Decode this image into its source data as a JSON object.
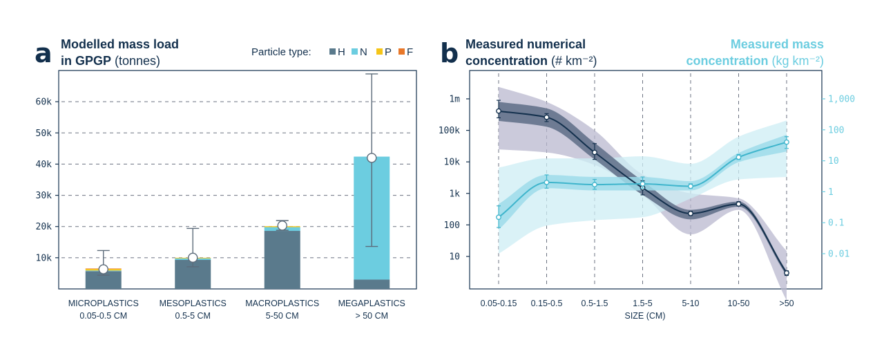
{
  "colors": {
    "H": "#5a7a8c",
    "N": "#6ccde0",
    "P": "#f5c518",
    "F": "#e8782a",
    "navy": "#13304d",
    "cyan": "#6ccde0"
  },
  "chart_data": [
    {
      "panel": "a",
      "type": "bar",
      "title": "Modelled mass load",
      "title_line2_bold": "in GPGP",
      "title_line2_unit": "(tonnes)",
      "legend_title": "Particle type:",
      "legend": [
        {
          "key": "H",
          "label": "H",
          "color": "#5a7a8c"
        },
        {
          "key": "N",
          "label": "N",
          "color": "#6ccde0"
        },
        {
          "key": "P",
          "label": "P",
          "color": "#f5c518"
        },
        {
          "key": "F",
          "label": "F",
          "color": "#e8782a"
        }
      ],
      "ylim": [
        0,
        70000
      ],
      "yticks": [
        10000,
        20000,
        30000,
        40000,
        50000,
        60000
      ],
      "ytick_labels": [
        "10k",
        "20k",
        "30k",
        "40k",
        "50k",
        "60k"
      ],
      "categories": [
        {
          "line1": "MICROPLASTICS",
          "line2": "0.05-0.5 CM"
        },
        {
          "line1": "MESOPLASTICS",
          "line2": "0.5-5 CM"
        },
        {
          "line1": "MACROPLASTICS",
          "line2": "5-50 CM"
        },
        {
          "line1": "MEGAPLASTICS",
          "line2": "> 50 CM"
        }
      ],
      "stacks": [
        {
          "H": 5700,
          "N": 200,
          "P": 500,
          "F": 150
        },
        {
          "H": 9300,
          "N": 500,
          "P": 200,
          "F": 0
        },
        {
          "H": 18600,
          "N": 1200,
          "P": 300,
          "F": 0
        },
        {
          "H": 3000,
          "N": 39400,
          "P": 0,
          "F": 0
        }
      ],
      "points": [
        6300,
        10000,
        20300,
        42000
      ],
      "errors": [
        [
          4400,
          12300
        ],
        [
          7100,
          19400
        ],
        [
          18800,
          21900
        ],
        [
          13600,
          68900
        ]
      ]
    },
    {
      "panel": "b",
      "type": "line",
      "title_left_line1": "Measured numerical",
      "title_left_line2": "concentration",
      "title_left_unit": "(# km⁻²)",
      "title_right_line1": "Measured mass",
      "title_right_line2": "concentration",
      "title_right_unit": "(kg km⁻²)",
      "xlabel": "SIZE (CM)",
      "categories": [
        "0.05-0.15",
        "0.15-0.5",
        "0.5-1.5",
        "1.5-5",
        "5-10",
        "10-50",
        ">50"
      ],
      "yleft_ticks": [
        10,
        100,
        1000,
        10000,
        100000,
        1000000
      ],
      "yleft_tick_labels": [
        "10",
        "100",
        "1k",
        "10k",
        "100k",
        "1m"
      ],
      "yright_ticks": [
        0.01,
        0.1,
        1,
        10,
        100,
        1000
      ],
      "yright_tick_labels": [
        "0.01",
        "0.1",
        "1",
        "10",
        "100",
        "1,000"
      ],
      "series": [
        {
          "axis": "left",
          "color": "#13304d",
          "values": [
            410000,
            260000,
            20000,
            1500,
            230,
            460,
            3
          ],
          "err": [
            [
              250000,
              900000
            ],
            [
              190000,
              340000
            ],
            [
              12000,
              38000
            ],
            [
              900,
              2500
            ],
            [
              200,
              270
            ],
            [
              400,
              550
            ],
            [
              2.5,
              3.5
            ]
          ],
          "band_outer": [
            [
              25000,
              2400000
            ],
            [
              20000,
              800000
            ],
            [
              8000,
              100000
            ],
            [
              900,
              4000
            ],
            [
              50,
              1000
            ],
            [
              300,
              700
            ],
            [
              0.4,
              15
            ]
          ],
          "band_inner": [
            [
              200000,
              800000
            ],
            [
              130000,
              500000
            ],
            [
              12000,
              40000
            ],
            [
              900,
              2500
            ],
            [
              150,
              300
            ],
            [
              380,
              550
            ],
            [
              2.5,
              3.5
            ]
          ]
        },
        {
          "axis": "right",
          "color": "#3fb5cc",
          "values": [
            0.15,
            2,
            1.7,
            1.8,
            1.5,
            13,
            40
          ],
          "err": [
            [
              0.07,
              0.35
            ],
            [
              1.3,
              3.5
            ],
            [
              1.2,
              2.5
            ],
            [
              1.3,
              3
            ],
            [
              1.3,
              1.8
            ],
            [
              11,
              16
            ],
            [
              25,
              60
            ]
          ],
          "band_outer": [
            [
              0.01,
              6
            ],
            [
              0.08,
              12
            ],
            [
              0.12,
              12
            ],
            [
              0.15,
              14
            ],
            [
              0.6,
              8
            ],
            [
              2.5,
              60
            ],
            [
              3,
              200
            ]
          ],
          "band_inner": [
            [
              0.06,
              0.4
            ],
            [
              1.3,
              3.5
            ],
            [
              1.1,
              3
            ],
            [
              1.1,
              3
            ],
            [
              1.1,
              2.2
            ],
            [
              9,
              18
            ],
            [
              20,
              70
            ]
          ]
        }
      ]
    }
  ]
}
